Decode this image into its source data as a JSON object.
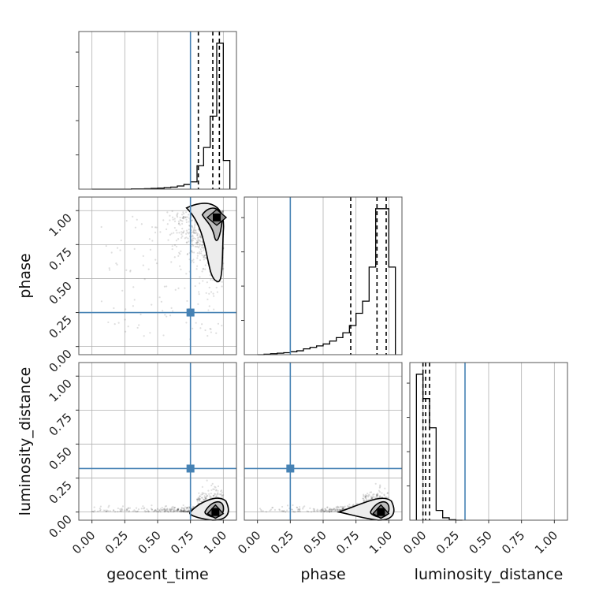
{
  "chart_data": {
    "type": "corner",
    "parameters": [
      "geocent_time",
      "phase",
      "luminosity_distance"
    ],
    "axis_labels": {
      "x": [
        "geocent_time",
        "phase",
        "luminosity_distance"
      ],
      "y": [
        "phase",
        "luminosity_distance"
      ]
    },
    "tick_values": [
      0.0,
      0.25,
      0.5,
      0.75,
      1.0
    ],
    "tick_labels": [
      "0.00",
      "0.25",
      "0.50",
      "0.75",
      "1.00"
    ],
    "xlim": [
      -0.1,
      1.1
    ],
    "ylim": [
      -0.06,
      1.1
    ],
    "grid": true,
    "colors": {
      "truth": "#4682b4",
      "hist": "#000000",
      "points": "#000000",
      "grid": "#b0b0b0"
    },
    "truth_values": {
      "geocent_time": 0.75,
      "phase": 0.25,
      "luminosity_distance": 0.32
    },
    "quantile_lines": {
      "geocent_time": [
        0.81,
        0.92,
        0.97
      ],
      "phase": [
        0.71,
        0.91,
        0.98
      ],
      "luminosity_distance": [
        0.0,
        0.02,
        0.05
      ]
    },
    "histograms": {
      "geocent_time": {
        "bin_edges": [
          0.0,
          0.05,
          0.1,
          0.15,
          0.2,
          0.25,
          0.3,
          0.35,
          0.4,
          0.45,
          0.5,
          0.55,
          0.6,
          0.65,
          0.7,
          0.75,
          0.8,
          0.85,
          0.9,
          0.95,
          1.0,
          1.05
        ],
        "counts": [
          0,
          0,
          0,
          0,
          0,
          0,
          1,
          1,
          2,
          3,
          4,
          6,
          8,
          12,
          18,
          28,
          90,
          160,
          280,
          560,
          110
        ]
      },
      "phase": {
        "bin_edges": [
          0.0,
          0.05,
          0.1,
          0.15,
          0.2,
          0.25,
          0.3,
          0.35,
          0.4,
          0.45,
          0.5,
          0.55,
          0.6,
          0.65,
          0.7,
          0.75,
          0.8,
          0.85,
          0.9,
          0.95,
          1.0,
          1.05
        ],
        "counts": [
          0,
          1,
          2,
          3,
          4,
          6,
          8,
          12,
          15,
          18,
          22,
          28,
          35,
          45,
          60,
          85,
          110,
          180,
          300,
          300,
          180
        ]
      },
      "luminosity_distance": {
        "bin_edges": [
          -0.05,
          0.0,
          0.05,
          0.1,
          0.15,
          0.2,
          0.25,
          0.3
        ],
        "counts": [
          300,
          250,
          190,
          20,
          5,
          1,
          0
        ]
      }
    },
    "scatter_stats": {
      "geocent_time_vs_phase": {
        "x_peak": 0.95,
        "y_peak": 0.95,
        "n_points": 900
      },
      "geocent_time_vs_luminosity_distance": {
        "x_peak": 0.94,
        "y_peak": 0.0,
        "n_points": 700
      },
      "phase_vs_luminosity_distance": {
        "x_peak": 0.94,
        "y_peak": 0.0,
        "n_points": 700
      }
    }
  }
}
